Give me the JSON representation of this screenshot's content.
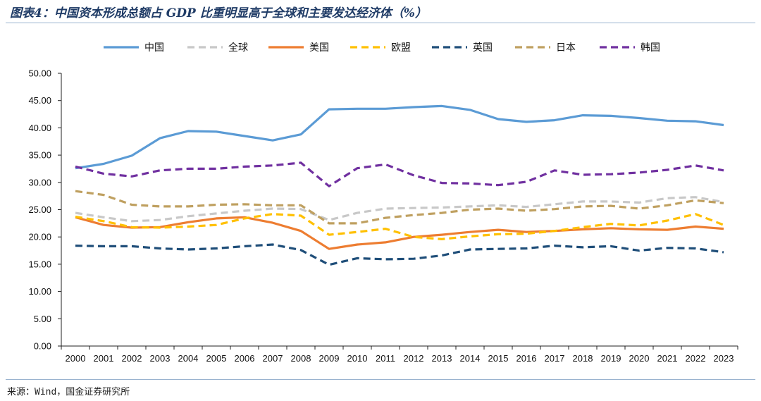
{
  "title": "图表4：中国资本形成总额占 GDP 比重明显高于全球和主要发达经济体（%）",
  "source": "来源：Wind，国金证券研究所",
  "chart_data": {
    "type": "line",
    "title": "图表4：中国资本形成总额占 GDP 比重明显高于全球和主要发达经济体（%）",
    "xlabel": "",
    "ylabel": "",
    "ylim": [
      0,
      50
    ],
    "yticks": [
      "0.00",
      "5.00",
      "10.00",
      "15.00",
      "20.00",
      "25.00",
      "30.00",
      "35.00",
      "40.00",
      "45.00",
      "50.00"
    ],
    "legend_position": "top",
    "categories": [
      "2000",
      "2001",
      "2002",
      "2003",
      "2004",
      "2005",
      "2006",
      "2007",
      "2008",
      "2009",
      "2010",
      "2011",
      "2012",
      "2013",
      "2014",
      "2015",
      "2016",
      "2017",
      "2018",
      "2019",
      "2020",
      "2021",
      "2022",
      "2023"
    ],
    "series": [
      {
        "name": "中国",
        "color": "#5b9bd5",
        "dash": "solid",
        "values": [
          32.6,
          33.4,
          34.9,
          38.1,
          39.4,
          39.3,
          38.5,
          37.7,
          38.8,
          43.4,
          43.5,
          43.5,
          43.8,
          44.0,
          43.3,
          41.6,
          41.1,
          41.4,
          42.3,
          42.2,
          41.8,
          41.3,
          41.2,
          40.5
        ]
      },
      {
        "name": "全球",
        "color": "#c8c8c8",
        "dash": "dash",
        "values": [
          24.4,
          23.6,
          22.9,
          23.1,
          23.8,
          24.3,
          24.8,
          25.2,
          25.1,
          23.1,
          24.4,
          25.2,
          25.3,
          25.4,
          25.6,
          25.8,
          25.5,
          26.0,
          26.5,
          26.5,
          26.3,
          27.1,
          27.3,
          26.4
        ]
      },
      {
        "name": "美国",
        "color": "#ed7d31",
        "dash": "solid",
        "values": [
          23.6,
          22.2,
          21.7,
          21.8,
          22.7,
          23.4,
          23.6,
          22.6,
          21.1,
          17.8,
          18.6,
          19.0,
          20.0,
          20.4,
          20.9,
          21.3,
          20.9,
          21.1,
          21.4,
          21.6,
          21.4,
          21.3,
          21.9,
          21.5
        ]
      },
      {
        "name": "欧盟",
        "color": "#ffc000",
        "dash": "dash",
        "values": [
          23.7,
          22.9,
          21.8,
          21.7,
          21.9,
          22.2,
          23.4,
          24.2,
          23.9,
          20.4,
          20.9,
          21.5,
          20.0,
          19.6,
          20.1,
          20.5,
          20.6,
          21.1,
          21.8,
          22.4,
          22.1,
          23.0,
          24.2,
          22.2
        ]
      },
      {
        "name": "英国",
        "color": "#1f4e79",
        "dash": "dash",
        "values": [
          18.4,
          18.3,
          18.3,
          17.9,
          17.7,
          17.9,
          18.3,
          18.6,
          17.6,
          14.9,
          16.1,
          15.9,
          16.0,
          16.6,
          17.7,
          17.8,
          17.9,
          18.4,
          18.1,
          18.3,
          17.5,
          18.0,
          17.9,
          17.2
        ]
      },
      {
        "name": "日本",
        "color": "#bfa060",
        "dash": "dash",
        "values": [
          28.4,
          27.7,
          25.9,
          25.6,
          25.6,
          25.9,
          26.0,
          25.8,
          25.8,
          22.5,
          22.5,
          23.5,
          24.0,
          24.4,
          25.0,
          25.2,
          24.8,
          25.1,
          25.6,
          25.7,
          25.2,
          25.8,
          26.7,
          26.2
        ]
      },
      {
        "name": "韩国",
        "color": "#7030a0",
        "dash": "dash",
        "values": [
          32.9,
          31.6,
          31.1,
          32.2,
          32.5,
          32.5,
          32.9,
          33.1,
          33.6,
          29.3,
          32.6,
          33.3,
          31.3,
          29.9,
          29.8,
          29.5,
          30.1,
          32.2,
          31.4,
          31.5,
          31.8,
          32.3,
          33.1,
          32.2
        ]
      }
    ]
  }
}
